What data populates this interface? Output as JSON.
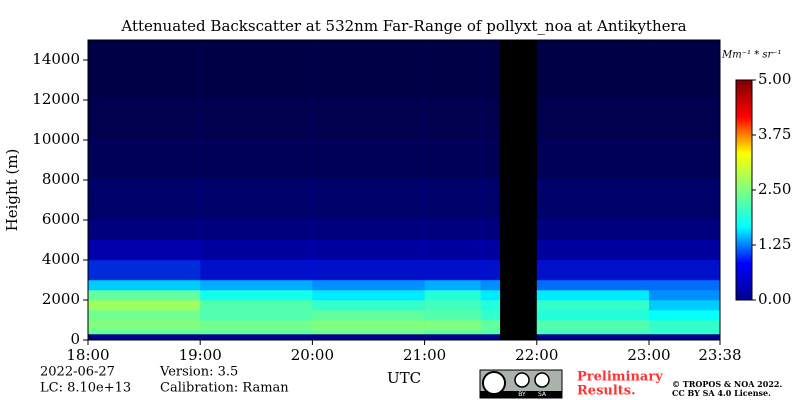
{
  "chart_data": {
    "type": "heatmap",
    "title": "Attenuated Backscatter at 532nm Far-Range of pollyxt_noa at Antikythera",
    "ylabel": "Height (m)",
    "xlabel": "UTC",
    "colorbar_label": "Mm⁻¹ * sr⁻¹",
    "x_edges": [
      18,
      19,
      20,
      21,
      21.5,
      21.67,
      22,
      23,
      23.633
    ],
    "y_edges": [
      0,
      300,
      500,
      1000,
      1500,
      2000,
      2500,
      3000,
      4000,
      5000,
      6000,
      8000,
      10000,
      12000,
      15000
    ],
    "values": [
      [
        0.6,
        0.6,
        0.6,
        0.6,
        0.6,
        null,
        0.6,
        0.6
      ],
      [
        2.3,
        2.3,
        2.4,
        2.3,
        2.2,
        null,
        2.1,
        2.0
      ],
      [
        2.5,
        2.4,
        2.5,
        2.5,
        2.3,
        null,
        2.2,
        2.0
      ],
      [
        2.4,
        2.2,
        2.3,
        2.2,
        2.0,
        null,
        1.9,
        1.7
      ],
      [
        2.7,
        2.2,
        2.0,
        2.1,
        1.9,
        null,
        2.0,
        1.5
      ],
      [
        2.3,
        1.8,
        1.6,
        1.9,
        1.6,
        null,
        1.6,
        1.3
      ],
      [
        1.5,
        1.4,
        1.3,
        1.4,
        1.3,
        null,
        1.2,
        1.2
      ],
      [
        1.0,
        0.9,
        0.9,
        0.9,
        0.9,
        null,
        0.9,
        0.9
      ],
      [
        0.75,
        0.7,
        0.7,
        0.7,
        0.7,
        null,
        0.7,
        0.7
      ],
      [
        0.55,
        0.55,
        0.55,
        0.55,
        0.55,
        null,
        0.55,
        0.55
      ],
      [
        0.45,
        0.45,
        0.45,
        0.45,
        0.45,
        null,
        0.45,
        0.45
      ],
      [
        0.35,
        0.35,
        0.35,
        0.35,
        0.35,
        null,
        0.35,
        0.35
      ],
      [
        0.3,
        0.3,
        0.3,
        0.3,
        0.3,
        null,
        0.3,
        0.3
      ],
      [
        0.25,
        0.25,
        0.25,
        0.25,
        0.25,
        null,
        0.25,
        0.25
      ]
    ],
    "xlim": [
      18,
      23.633
    ],
    "ylim": [
      0,
      15000
    ],
    "xticks": [
      {
        "value": 18,
        "label": "18:00"
      },
      {
        "value": 19,
        "label": "19:00"
      },
      {
        "value": 20,
        "label": "20:00"
      },
      {
        "value": 21,
        "label": "21:00"
      },
      {
        "value": 22,
        "label": "22:00"
      },
      {
        "value": 23,
        "label": "23:00"
      },
      {
        "value": 23.633,
        "label": "23:38"
      }
    ],
    "yticks": [
      0,
      2000,
      4000,
      6000,
      8000,
      10000,
      12000,
      14000
    ],
    "clim": [
      0,
      5
    ],
    "cticks": [
      {
        "value": 0,
        "label": "0.00"
      },
      {
        "value": 1.25,
        "label": "1.25"
      },
      {
        "value": 2.5,
        "label": "2.50"
      },
      {
        "value": 3.75,
        "label": "3.75"
      },
      {
        "value": 5,
        "label": "5.00"
      }
    ],
    "colormap": [
      "#00008f",
      "#0000ff",
      "#00ffff",
      "#80ff80",
      "#ffff00",
      "#ff0000",
      "#800000"
    ],
    "date": "2022-06-27",
    "lc": "LC: 8.10e+13",
    "version": "Version: 3.5",
    "calibration": "Calibration: Raman",
    "preliminary": [
      "Preliminary",
      "Results."
    ],
    "copyright": [
      "© TROPOS & NOA 2022.",
      "CC BY SA 4.0 License."
    ],
    "badge": [
      "BY",
      "SA"
    ]
  }
}
